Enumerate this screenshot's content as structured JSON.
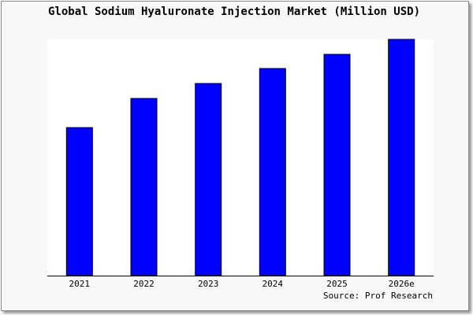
{
  "chart_data": {
    "type": "bar",
    "title": "Global Sodium Hyaluronate Injection Market (Million USD)",
    "categories": [
      "2021",
      "2022",
      "2023",
      "2024",
      "2025",
      "2026e"
    ],
    "values": [
      188,
      225,
      244,
      263,
      281,
      300
    ],
    "ylim": [
      0,
      300
    ],
    "xlabel": "",
    "ylabel": "",
    "grid": false,
    "bar_color": "#0000ff",
    "annotation": "Source: Prof Research"
  }
}
